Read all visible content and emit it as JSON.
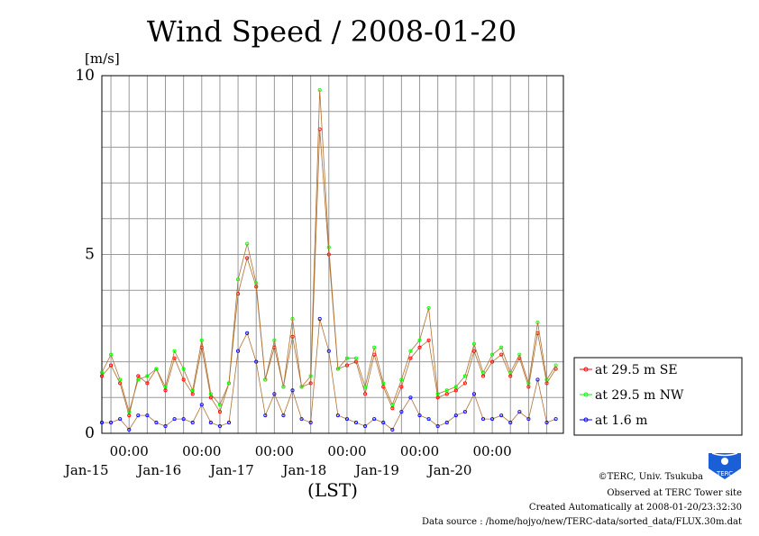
{
  "chart_data": {
    "type": "line",
    "title": "Wind Speed / 2008-01-20",
    "ylabel": "[m/s]",
    "xlabel": "(LST)",
    "ylim": [
      0,
      10
    ],
    "yticks": [
      "0",
      "5",
      "10"
    ],
    "grid": true,
    "legend_position": "right",
    "x_start": "2008-01-14T15:00",
    "x_end": "2008-01-20T23:30",
    "x_ticks": [
      {
        "t": "2008-01-15T00:00",
        "label": "00:00",
        "day": "Jan-15"
      },
      {
        "t": "2008-01-16T00:00",
        "label": "00:00",
        "day": "Jan-16"
      },
      {
        "t": "2008-01-17T00:00",
        "label": "00:00",
        "day": "Jan-17"
      },
      {
        "t": "2008-01-18T00:00",
        "label": "00:00",
        "day": "Jan-18"
      },
      {
        "t": "2008-01-19T00:00",
        "label": "00:00",
        "day": "Jan-19"
      },
      {
        "t": "2008-01-20T00:00",
        "label": "00:00",
        "day": "Jan-20"
      }
    ],
    "x": [
      "2008-01-14T15:00",
      "2008-01-14T18:00",
      "2008-01-14T21:00",
      "2008-01-15T00:00",
      "2008-01-15T03:00",
      "2008-01-15T06:00",
      "2008-01-15T09:00",
      "2008-01-15T12:00",
      "2008-01-15T15:00",
      "2008-01-15T18:00",
      "2008-01-15T21:00",
      "2008-01-16T00:00",
      "2008-01-16T03:00",
      "2008-01-16T06:00",
      "2008-01-16T09:00",
      "2008-01-16T12:00",
      "2008-01-16T15:00",
      "2008-01-16T18:00",
      "2008-01-16T21:00",
      "2008-01-17T00:00",
      "2008-01-17T03:00",
      "2008-01-17T06:00",
      "2008-01-17T09:00",
      "2008-01-17T12:00",
      "2008-01-17T15:00",
      "2008-01-17T18:00",
      "2008-01-17T21:00",
      "2008-01-18T00:00",
      "2008-01-18T03:00",
      "2008-01-18T06:00",
      "2008-01-18T09:00",
      "2008-01-18T12:00",
      "2008-01-18T15:00",
      "2008-01-18T18:00",
      "2008-01-18T21:00",
      "2008-01-19T00:00",
      "2008-01-19T03:00",
      "2008-01-19T06:00",
      "2008-01-19T09:00",
      "2008-01-19T12:00",
      "2008-01-19T15:00",
      "2008-01-19T18:00",
      "2008-01-19T21:00",
      "2008-01-20T00:00",
      "2008-01-20T03:00",
      "2008-01-20T06:00",
      "2008-01-20T09:00",
      "2008-01-20T12:00",
      "2008-01-20T15:00",
      "2008-01-20T18:00",
      "2008-01-20T21:00"
    ],
    "series": [
      {
        "name": "at 29.5 m SE",
        "color": "#ff0000",
        "values": [
          1.6,
          1.9,
          1.4,
          0.5,
          1.6,
          1.4,
          1.8,
          1.2,
          2.1,
          1.5,
          1.1,
          2.4,
          1.0,
          0.6,
          1.4,
          3.9,
          4.9,
          4.1,
          1.5,
          2.4,
          1.3,
          2.7,
          1.3,
          1.4,
          8.5,
          5.0,
          1.8,
          1.9,
          2.0,
          1.1,
          2.2,
          1.3,
          0.7,
          1.3,
          2.1,
          2.4,
          2.6,
          1.0,
          1.1,
          1.2,
          1.4,
          2.3,
          1.6,
          2.0,
          2.2,
          1.6,
          2.1,
          1.3,
          2.8,
          1.4,
          1.8
        ]
      },
      {
        "name": "at 29.5 m NW",
        "color": "#00ff00",
        "values": [
          1.7,
          2.2,
          1.5,
          0.6,
          1.5,
          1.6,
          1.8,
          1.3,
          2.3,
          1.8,
          1.2,
          2.6,
          1.1,
          0.8,
          1.4,
          4.3,
          5.3,
          4.2,
          1.5,
          2.6,
          1.3,
          3.2,
          1.3,
          1.6,
          9.6,
          5.2,
          1.8,
          2.1,
          2.1,
          1.3,
          2.4,
          1.4,
          0.8,
          1.5,
          2.3,
          2.6,
          3.5,
          1.1,
          1.2,
          1.3,
          1.6,
          2.5,
          1.7,
          2.2,
          2.4,
          1.7,
          2.2,
          1.4,
          3.1,
          1.5,
          1.9
        ]
      },
      {
        "name": "at 1.6 m",
        "color": "#0000ff",
        "values": [
          0.3,
          0.3,
          0.4,
          0.1,
          0.5,
          0.5,
          0.3,
          0.2,
          0.4,
          0.4,
          0.3,
          0.8,
          0.3,
          0.2,
          0.3,
          2.3,
          2.8,
          2.0,
          0.5,
          1.1,
          0.5,
          1.2,
          0.4,
          0.3,
          3.2,
          2.3,
          0.5,
          0.4,
          0.3,
          0.2,
          0.4,
          0.3,
          0.1,
          0.6,
          1.0,
          0.5,
          0.4,
          0.2,
          0.3,
          0.5,
          0.6,
          1.1,
          0.4,
          0.4,
          0.5,
          0.3,
          0.6,
          0.4,
          1.5,
          0.3,
          0.4
        ]
      }
    ]
  },
  "footer": {
    "copyright": "©TERC, Univ. Tsukuba",
    "observed": "Observed at TERC Tower site",
    "created": "Created Automatically at 2008-01-20/23:32:30",
    "source": "Data source : /home/hojyo/new/TERC-data/sorted_data/FLUX.30m.dat"
  },
  "logo": {
    "text": "TERC",
    "color": "#1a5fd6"
  }
}
